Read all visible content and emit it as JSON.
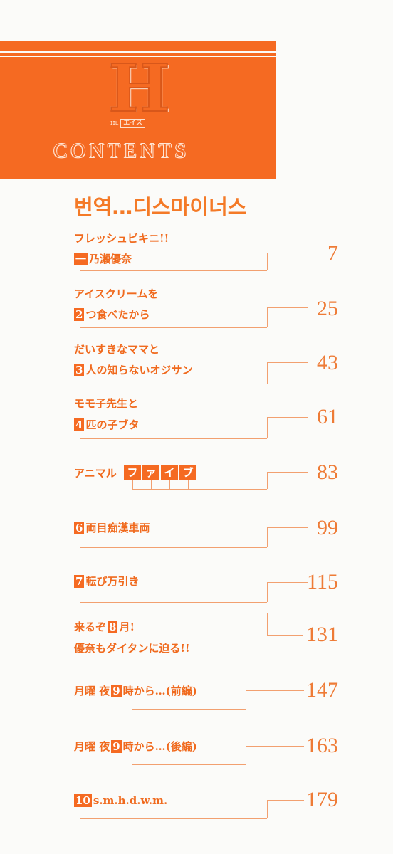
{
  "header": {
    "logo_letter": "H",
    "logo_sub_left": "ɪɪʟ",
    "logo_sub_right": "エイス",
    "title": "CONTENTS"
  },
  "translator_note": "번역…디스마이너스",
  "entries": [
    {
      "line1": "フレッシュビキニ!!",
      "num": "一",
      "line2": "乃瀬優奈",
      "page": "7"
    },
    {
      "line1": "アイスクリームを",
      "num": "2",
      "line2": "つ食べたから",
      "page": "25"
    },
    {
      "line1": "だいすきなママと",
      "num": "3",
      "line2": "人の知らないオジサン",
      "page": "43"
    },
    {
      "line1": "モモ子先生と",
      "num": "4",
      "line2": "匹の子ブタ",
      "page": "61"
    },
    {
      "line1": "アニマル",
      "boxes": [
        "フ",
        "ァ",
        "イ",
        "ブ"
      ],
      "page": "83"
    },
    {
      "num": "6",
      "line1": "両目痴漢車両",
      "page": "99"
    },
    {
      "num": "7",
      "line1": "転び万引き",
      "page": "115"
    },
    {
      "line1a": "来るぞ",
      "num": "8",
      "line1b": "月!",
      "line2": "優奈もダイタンに迫る!!",
      "page": "131"
    },
    {
      "line1a": "月曜 夜",
      "num": "9",
      "line1b": "時から…(前編)",
      "page": "147"
    },
    {
      "line1a": "月曜 夜",
      "num": "9",
      "line1b": "時から…(後編)",
      "page": "163"
    },
    {
      "num": "10",
      "line1": "s.m.h.d.w.m.",
      "page": "179"
    }
  ],
  "colors": {
    "accent": "#f56a22",
    "background": "#fbfbf9"
  }
}
